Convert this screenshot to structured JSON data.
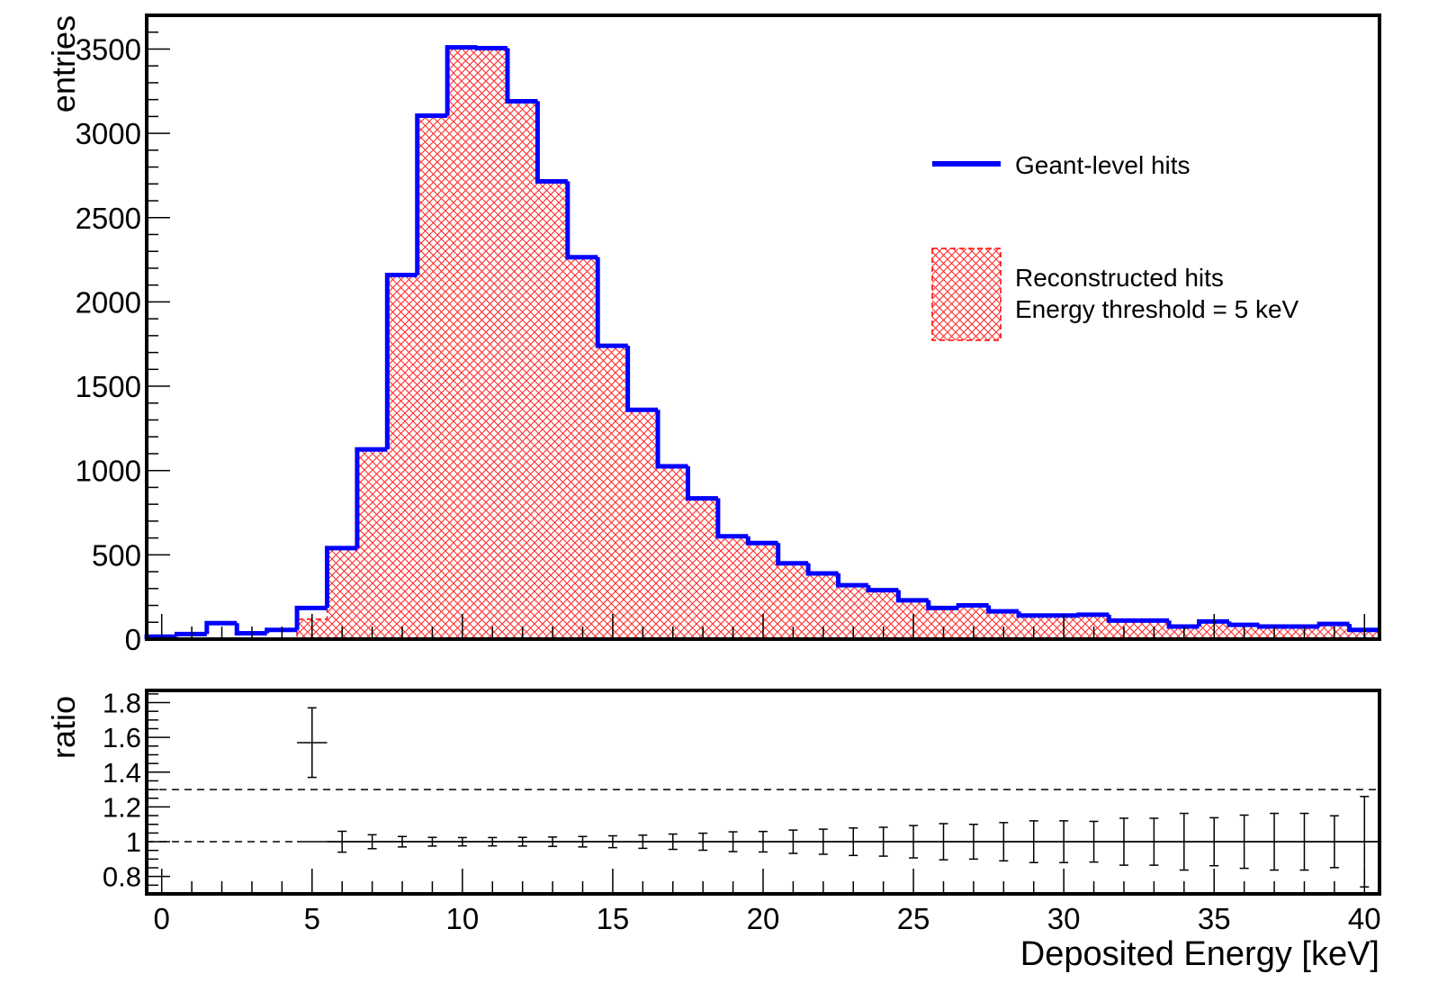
{
  "chart_data": [
    {
      "type": "bar",
      "panel": "main",
      "ylabel": "entries",
      "xlim": [
        -0.5,
        40.5
      ],
      "ylim": [
        0,
        3700
      ],
      "yticks": [
        0,
        500,
        1000,
        1500,
        2000,
        2500,
        3000,
        3500
      ],
      "yticklabels": [
        "0",
        "500",
        "1000",
        "1500",
        "2000",
        "2500",
        "3000",
        "3500"
      ],
      "bin_edges": [
        -0.5,
        0.5,
        1.5,
        2.5,
        3.5,
        4.5,
        5.5,
        6.5,
        7.5,
        8.5,
        9.5,
        10.5,
        11.5,
        12.5,
        13.5,
        14.5,
        15.5,
        16.5,
        17.5,
        18.5,
        19.5,
        20.5,
        21.5,
        22.5,
        23.5,
        24.5,
        25.5,
        26.5,
        27.5,
        28.5,
        29.5,
        30.5,
        31.5,
        32.5,
        33.5,
        34.5,
        35.5,
        36.5,
        37.5,
        38.5,
        39.5,
        40.5
      ],
      "series": [
        {
          "name": "Geant-level hits",
          "style": "line",
          "color": "#0000ff",
          "values": [
            15,
            30,
            95,
            35,
            55,
            185,
            540,
            1125,
            2160,
            3105,
            3510,
            3505,
            3190,
            2715,
            2265,
            1740,
            1360,
            1025,
            835,
            610,
            570,
            450,
            390,
            320,
            290,
            230,
            185,
            200,
            165,
            140,
            140,
            145,
            110,
            110,
            75,
            105,
            85,
            75,
            75,
            90,
            55
          ]
        },
        {
          "name": "Reconstructed hits",
          "name_line2": "Energy threshold = 5 keV",
          "style": "hatched",
          "color": "#ff0000",
          "values": [
            0,
            0,
            0,
            0,
            0,
            118,
            540,
            1125,
            2160,
            3105,
            3510,
            3505,
            3190,
            2715,
            2265,
            1740,
            1360,
            1025,
            835,
            610,
            570,
            450,
            390,
            320,
            290,
            230,
            185,
            200,
            165,
            140,
            140,
            145,
            110,
            110,
            75,
            105,
            85,
            75,
            75,
            90,
            55
          ]
        }
      ]
    },
    {
      "type": "scatter",
      "panel": "ratio",
      "ylabel": "ratio",
      "xlabel": "Deposited Energy [keV]",
      "xlim": [
        -0.5,
        40.5
      ],
      "ylim": [
        0.7,
        1.87
      ],
      "xticks": [
        0,
        5,
        10,
        15,
        20,
        25,
        30,
        35,
        40
      ],
      "xticklabels": [
        "0",
        "5",
        "10",
        "15",
        "20",
        "25",
        "30",
        "35",
        "40"
      ],
      "yticks": [
        0.8,
        1.0,
        1.2,
        1.4,
        1.6,
        1.8
      ],
      "yticklabels": [
        "0.8",
        "1",
        "1.2",
        "1.4",
        "1.6",
        "1.8"
      ],
      "reference_lines": [
        1.0,
        1.3
      ],
      "points": [
        {
          "x": 5,
          "y": 1.57,
          "yerr": 0.2
        },
        {
          "x": 6,
          "y": 1.0,
          "yerr": 0.06
        },
        {
          "x": 7,
          "y": 1.0,
          "yerr": 0.04
        },
        {
          "x": 8,
          "y": 1.0,
          "yerr": 0.03
        },
        {
          "x": 9,
          "y": 1.0,
          "yerr": 0.025
        },
        {
          "x": 10,
          "y": 1.0,
          "yerr": 0.024
        },
        {
          "x": 11,
          "y": 1.0,
          "yerr": 0.024
        },
        {
          "x": 12,
          "y": 1.0,
          "yerr": 0.025
        },
        {
          "x": 13,
          "y": 1.0,
          "yerr": 0.027
        },
        {
          "x": 14,
          "y": 1.0,
          "yerr": 0.03
        },
        {
          "x": 15,
          "y": 1.0,
          "yerr": 0.034
        },
        {
          "x": 16,
          "y": 1.0,
          "yerr": 0.038
        },
        {
          "x": 17,
          "y": 1.0,
          "yerr": 0.044
        },
        {
          "x": 18,
          "y": 1.0,
          "yerr": 0.049
        },
        {
          "x": 19,
          "y": 1.0,
          "yerr": 0.057
        },
        {
          "x": 20,
          "y": 1.0,
          "yerr": 0.059
        },
        {
          "x": 21,
          "y": 1.0,
          "yerr": 0.067
        },
        {
          "x": 22,
          "y": 1.0,
          "yerr": 0.072
        },
        {
          "x": 23,
          "y": 1.0,
          "yerr": 0.079
        },
        {
          "x": 24,
          "y": 1.0,
          "yerr": 0.083
        },
        {
          "x": 25,
          "y": 1.0,
          "yerr": 0.093
        },
        {
          "x": 26,
          "y": 1.0,
          "yerr": 0.104
        },
        {
          "x": 27,
          "y": 1.0,
          "yerr": 0.1
        },
        {
          "x": 28,
          "y": 1.0,
          "yerr": 0.11
        },
        {
          "x": 29,
          "y": 1.0,
          "yerr": 0.12
        },
        {
          "x": 30,
          "y": 1.0,
          "yerr": 0.12
        },
        {
          "x": 31,
          "y": 1.0,
          "yerr": 0.117
        },
        {
          "x": 32,
          "y": 1.0,
          "yerr": 0.135
        },
        {
          "x": 33,
          "y": 1.0,
          "yerr": 0.135
        },
        {
          "x": 34,
          "y": 1.0,
          "yerr": 0.163
        },
        {
          "x": 35,
          "y": 1.0,
          "yerr": 0.138
        },
        {
          "x": 36,
          "y": 1.0,
          "yerr": 0.153
        },
        {
          "x": 37,
          "y": 1.0,
          "yerr": 0.163
        },
        {
          "x": 38,
          "y": 1.0,
          "yerr": 0.163
        },
        {
          "x": 39,
          "y": 1.0,
          "yerr": 0.149
        },
        {
          "x": 40,
          "y": 1.0,
          "yerr": 0.26
        }
      ]
    }
  ]
}
